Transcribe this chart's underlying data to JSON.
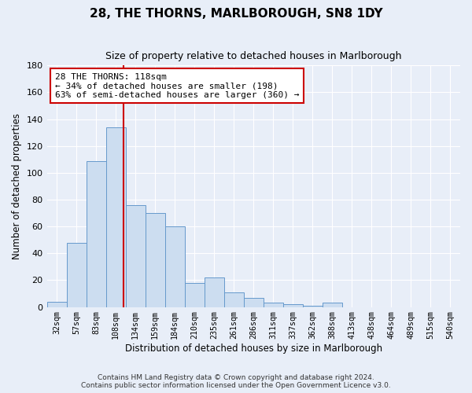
{
  "title": "28, THE THORNS, MARLBOROUGH, SN8 1DY",
  "subtitle": "Size of property relative to detached houses in Marlborough",
  "xlabel": "Distribution of detached houses by size in Marlborough",
  "ylabel": "Number of detached properties",
  "bar_heights": [
    4,
    48,
    109,
    134,
    76,
    70,
    60,
    18,
    22,
    11,
    7,
    3,
    2,
    1,
    3,
    0,
    0,
    0,
    0,
    0,
    0
  ],
  "bin_labels": [
    "32sqm",
    "57sqm",
    "83sqm",
    "108sqm",
    "134sqm",
    "159sqm",
    "184sqm",
    "210sqm",
    "235sqm",
    "261sqm",
    "286sqm",
    "311sqm",
    "337sqm",
    "362sqm",
    "388sqm",
    "413sqm",
    "438sqm",
    "464sqm",
    "489sqm",
    "515sqm",
    "540sqm"
  ],
  "bar_color": "#ccddf0",
  "bar_edge_color": "#6699cc",
  "red_line_color": "#cc0000",
  "annotation_text": "28 THE THORNS: 118sqm\n← 34% of detached houses are smaller (198)\n63% of semi-detached houses are larger (360) →",
  "annotation_box_color": "#ffffff",
  "annotation_box_edge": "#cc0000",
  "footer1": "Contains HM Land Registry data © Crown copyright and database right 2024.",
  "footer2": "Contains public sector information licensed under the Open Government Licence v3.0.",
  "ylim": [
    0,
    180
  ],
  "yticks": [
    0,
    20,
    40,
    60,
    80,
    100,
    120,
    140,
    160,
    180
  ],
  "fig_bg_color": "#e8eef8",
  "axes_bg_color": "#e8eef8",
  "grid_color": "#ffffff"
}
